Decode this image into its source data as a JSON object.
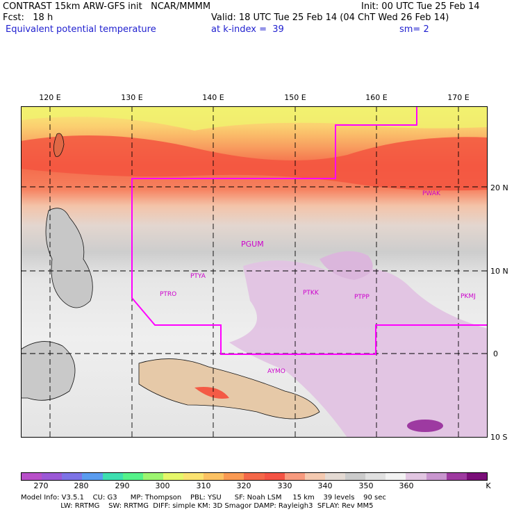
{
  "header": {
    "line1_left": "CONTRAST 15km ARW-GFS init   NCAR/MMMM",
    "line1_right": "Init: 00 UTC Tue 25 Feb 14",
    "line2_left": "Fcst:   18 h",
    "line2_right": "Valid: 18 UTC Tue 25 Feb 14 (04 ChT Wed 26 Feb 14)",
    "line3_left": "Equivalent potential temperature",
    "line3_mid": "at k-index =  39",
    "line3_right": "sm= 2"
  },
  "map": {
    "lon_labels": [
      "120 E",
      "130 E",
      "140 E",
      "150 E",
      "160 E",
      "170 E"
    ],
    "lat_labels": [
      "20 N",
      "10 N",
      "0",
      "10 S"
    ],
    "stations": [
      "PWAK",
      "PGUM",
      "PTYA",
      "PTRO",
      "PTKK",
      "PTPP",
      "PKMJ",
      "AYMO"
    ],
    "boundary_color": "#ff00ff",
    "station_color": "#cc00cc"
  },
  "colorbar": {
    "labels": [
      "270",
      "280",
      "290",
      "300",
      "310",
      "320",
      "330",
      "340",
      "350",
      "360"
    ],
    "unit": "K",
    "colors": [
      "#b84fc9",
      "#9b58d6",
      "#7d73e6",
      "#5a9cf0",
      "#3ddfb0",
      "#55f28a",
      "#9df570",
      "#e6f76a",
      "#fbe371",
      "#fcc263",
      "#fa9a53",
      "#f46849",
      "#f45344",
      "#f79a7e",
      "#f4c9b0",
      "#e4dad3",
      "#cbcbcb",
      "#e1e1e1",
      "#f3f3f3",
      "#e2c6e2",
      "#c996cf",
      "#9e3aa0",
      "#7a0e78"
    ]
  },
  "footer": {
    "line1": "Model Info: V3.5.1    CU: G3      MP: Thompson    PBL: YSU      SF: Noah LSM     15 km    39 levels    90 sec",
    "line2": "                  LW: RRTMG    SW: RRTMG  DIFF: simple KM: 3D Smagor DAMP: Rayleigh3  SFLAY: Rev MM5"
  }
}
